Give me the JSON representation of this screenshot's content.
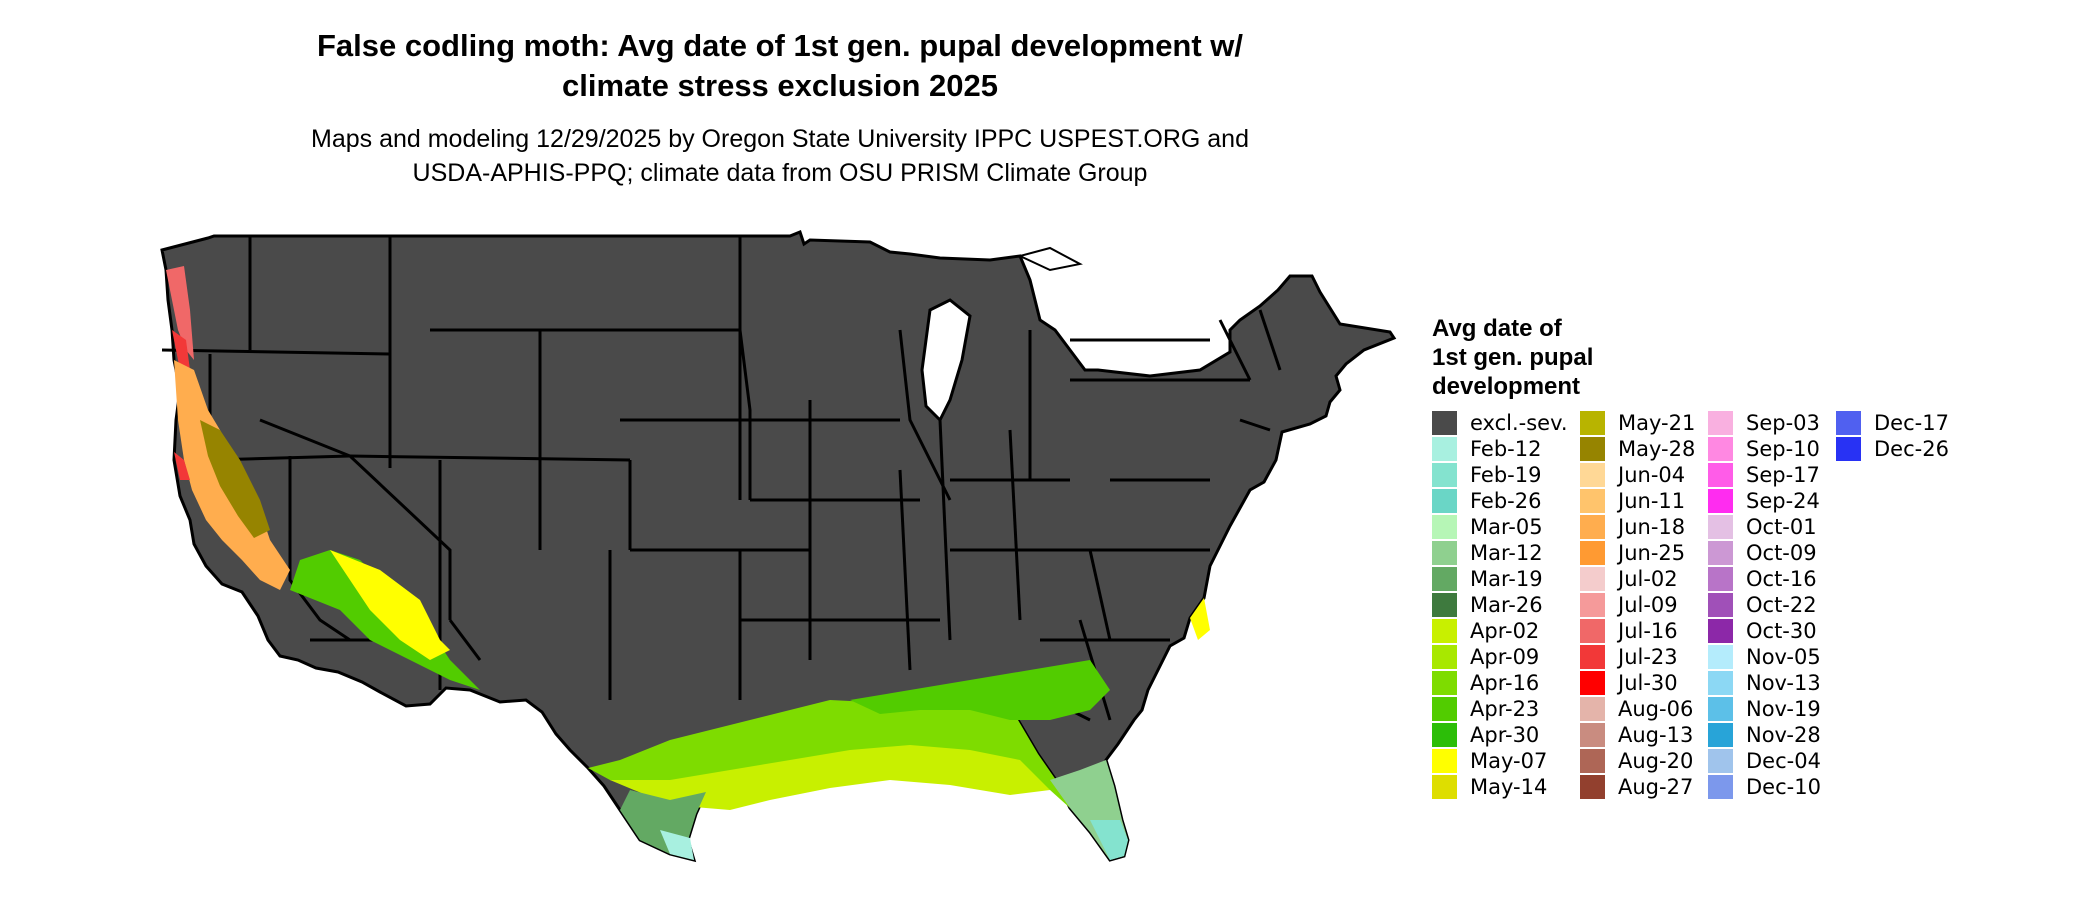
{
  "title_line1": "False codling moth: Avg date of 1st gen. pupal development w/",
  "title_line2": "climate stress exclusion 2025",
  "subtitle_line1": "Maps and modeling 12/29/2025 by Oregon State University IPPC USPEST.ORG and",
  "subtitle_line2": "USDA-APHIS-PPQ; climate data from OSU PRISM Climate Group",
  "legend_title_lines": [
    "Avg date of",
    "1st gen. pupal",
    "development"
  ],
  "legend": [
    {
      "label": "excl.-sev.",
      "color": "#4a4a4a"
    },
    {
      "label": "Feb-12",
      "color": "#a8f0e0"
    },
    {
      "label": "Feb-19",
      "color": "#84e3cf"
    },
    {
      "label": "Feb-26",
      "color": "#6ad6c6"
    },
    {
      "label": "Mar-05",
      "color": "#b6f6b6"
    },
    {
      "label": "Mar-12",
      "color": "#8fd08f"
    },
    {
      "label": "Mar-19",
      "color": "#63a963"
    },
    {
      "label": "Mar-26",
      "color": "#3e7a3e"
    },
    {
      "label": "Apr-02",
      "color": "#c8f000"
    },
    {
      "label": "Apr-09",
      "color": "#a8e800"
    },
    {
      "label": "Apr-16",
      "color": "#7edc00"
    },
    {
      "label": "Apr-23",
      "color": "#52cc00"
    },
    {
      "label": "Apr-30",
      "color": "#2cbe08"
    },
    {
      "label": "May-07",
      "color": "#ffff00"
    },
    {
      "label": "May-14",
      "color": "#dede00"
    },
    {
      "label": "May-21",
      "color": "#b8b400"
    },
    {
      "label": "May-28",
      "color": "#968400"
    },
    {
      "label": "Jun-04",
      "color": "#ffd896"
    },
    {
      "label": "Jun-11",
      "color": "#ffc46c"
    },
    {
      "label": "Jun-18",
      "color": "#ffad4e"
    },
    {
      "label": "Jun-25",
      "color": "#ff9a32"
    },
    {
      "label": "Jul-02",
      "color": "#f4cccc"
    },
    {
      "label": "Jul-09",
      "color": "#f59a9a"
    },
    {
      "label": "Jul-16",
      "color": "#f06868"
    },
    {
      "label": "Jul-23",
      "color": "#f23838"
    },
    {
      "label": "Jul-30",
      "color": "#ff0000"
    },
    {
      "label": "Aug-06",
      "color": "#e4b4aa"
    },
    {
      "label": "Aug-13",
      "color": "#c98c80"
    },
    {
      "label": "Aug-20",
      "color": "#ae6656"
    },
    {
      "label": "Aug-27",
      "color": "#92402e"
    },
    {
      "label": "Sep-03",
      "color": "#f9b0e0"
    },
    {
      "label": "Sep-10",
      "color": "#ff88e2"
    },
    {
      "label": "Sep-17",
      "color": "#ff5ce8"
    },
    {
      "label": "Sep-24",
      "color": "#ff2cf0"
    },
    {
      "label": "Oct-01",
      "color": "#e4c0e4"
    },
    {
      "label": "Oct-09",
      "color": "#cc98d4"
    },
    {
      "label": "Oct-16",
      "color": "#b874c8"
    },
    {
      "label": "Oct-22",
      "color": "#a050b8"
    },
    {
      "label": "Oct-30",
      "color": "#8c28a8"
    },
    {
      "label": "Nov-05",
      "color": "#b4ecfc"
    },
    {
      "label": "Nov-13",
      "color": "#8cd8f4"
    },
    {
      "label": "Nov-19",
      "color": "#5cc0e8"
    },
    {
      "label": "Nov-28",
      "color": "#28a4d8"
    },
    {
      "label": "Dec-04",
      "color": "#a0c4ec"
    },
    {
      "label": "Dec-10",
      "color": "#7c98ec"
    },
    {
      "label": "Dec-17",
      "color": "#5060f0"
    },
    {
      "label": "Dec-26",
      "color": "#2832f4"
    }
  ]
}
